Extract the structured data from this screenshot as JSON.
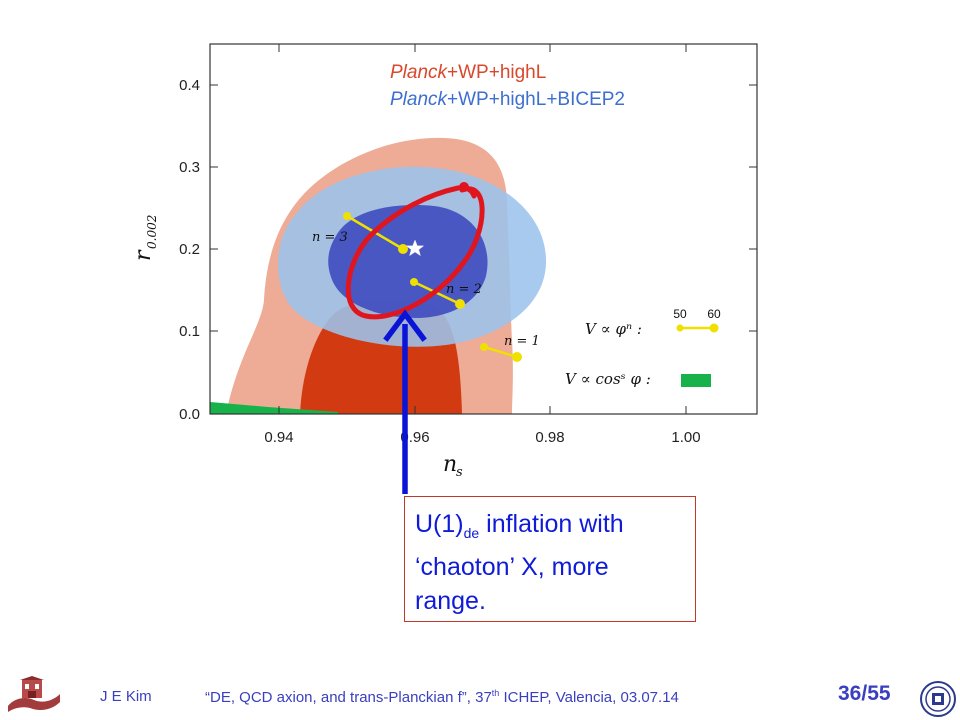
{
  "chart_data": {
    "type": "contour",
    "xlabel": "n_s",
    "ylabel": "r_{0.002}",
    "xlim": [
      0.93,
      1.01
    ],
    "ylim": [
      0.0,
      0.45
    ],
    "xticks": [
      "0.94",
      "0.96",
      "0.98",
      "1.00"
    ],
    "yticks": [
      "0.0",
      "0.1",
      "0.2",
      "0.3",
      "0.4"
    ],
    "legend_position": "top-right",
    "series": [
      {
        "name": "Planck+WP+highL",
        "color_outer": "#eeab96",
        "color_inner": "#d23a12"
      },
      {
        "name": "Planck+WP+highL+BICEP2",
        "color_outer": "#9cc3ec",
        "color_inner": "#3f4bbf"
      }
    ],
    "best_fit": {
      "x": 0.9595,
      "y": 0.2
    },
    "model_lines": [
      {
        "label": "n = 3",
        "points": [
          {
            "x": 0.9505,
            "y": 0.242
          },
          {
            "x": 0.959,
            "y": 0.2
          }
        ]
      },
      {
        "label": "n = 2",
        "points": [
          {
            "x": 0.9575,
            "y": 0.16
          },
          {
            "x": 0.967,
            "y": 0.133
          }
        ]
      },
      {
        "label": "n = 1",
        "points": [
          {
            "x": 0.969,
            "y": 0.081
          },
          {
            "x": 0.975,
            "y": 0.069
          }
        ]
      }
    ],
    "key_entries": [
      {
        "formula": "V ∝ φⁿ :",
        "labels": [
          "50",
          "60"
        ],
        "color": "#f0e000"
      },
      {
        "formula": "V ∝ cosˢ φ :",
        "color": "#18b24b"
      }
    ],
    "highlight_ellipse": {
      "center": {
        "x": 0.9626,
        "y": 0.186
      },
      "color": "#e0161e"
    },
    "arrow": {
      "to": {
        "x": 0.9601,
        "y": 0.125
      },
      "color": "#0a14d6"
    }
  },
  "legend": {
    "entry1": {
      "italic": "Planck",
      "rest": "+WP+highL"
    },
    "entry2": {
      "italic": "Planck",
      "rest": "+WP+highL+BICEP2"
    }
  },
  "annotations": {
    "n3": "n = 3",
    "n2": "n = 2",
    "n1": "n = 1"
  },
  "key": {
    "power_formula": "V ∝ φⁿ :",
    "label_50": "50",
    "label_60": "60",
    "cos_formula": "V ∝ cosˢ φ :"
  },
  "callout": {
    "prefix": "U(1)",
    "subscript": "de",
    "line1_rest": " inflation with",
    "line2": "‘chaoton’ X, more",
    "line3": "range."
  },
  "footer": {
    "author": "J  E  Kim",
    "talk_prefix": "“DE, QCD axion,  and trans-Planckian f”,  37",
    "talk_sup": "th",
    "talk_suffix": " ICHEP, Valencia,  03.07.14",
    "page_number": "36/55"
  },
  "colors": {
    "accent": "#3a3fbf",
    "callout_text": "#0f1bd8",
    "callout_border": "#c0392b"
  }
}
